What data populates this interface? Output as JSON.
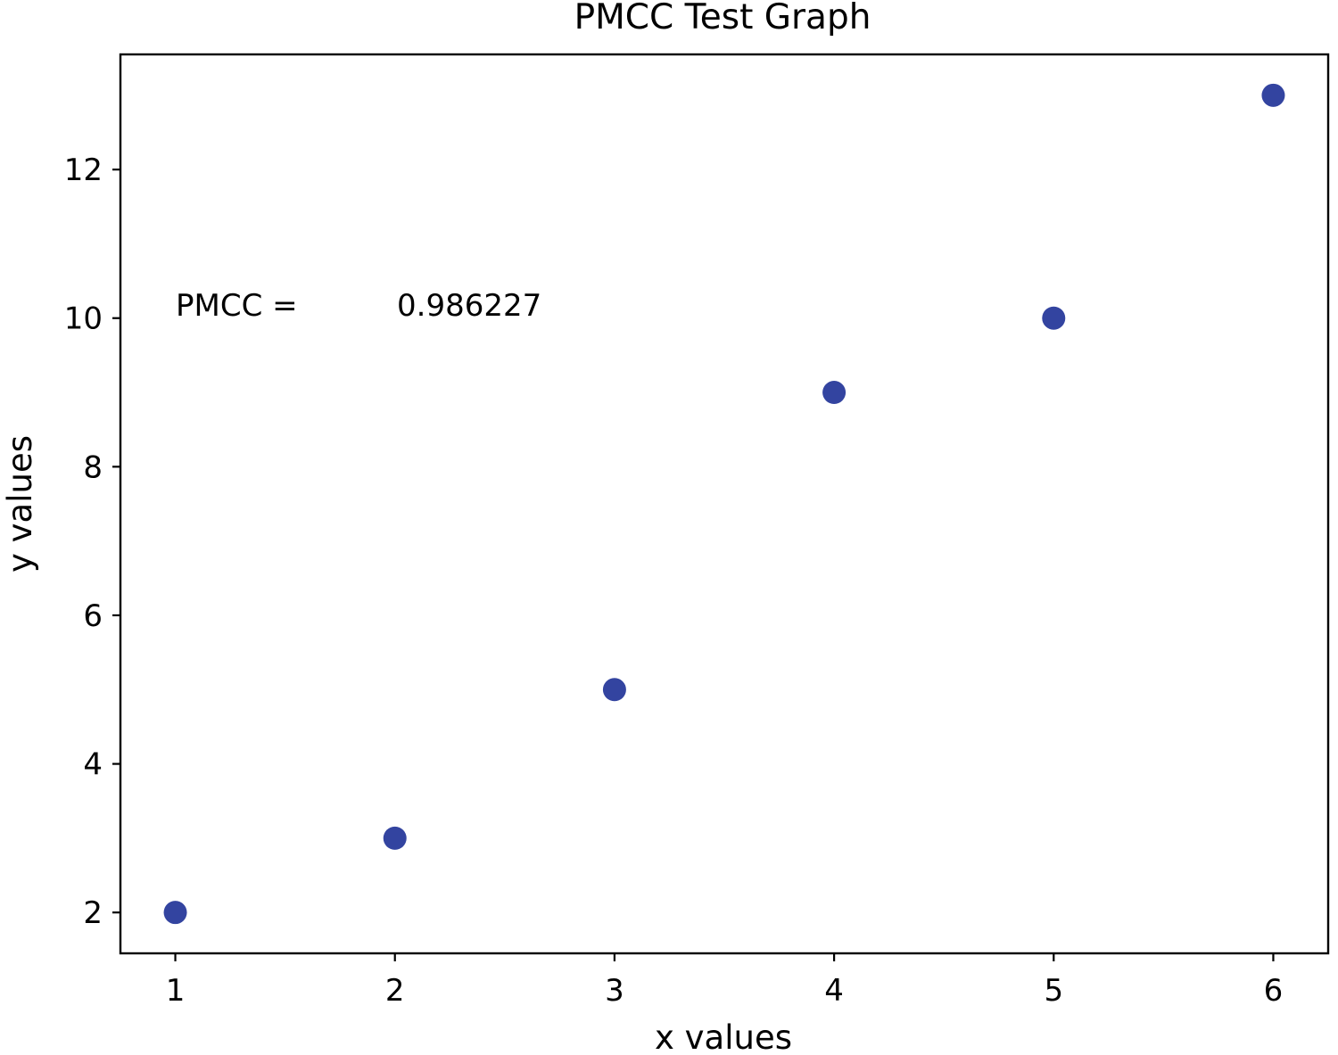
{
  "chart_data": {
    "type": "scatter",
    "title": "PMCC Test Graph",
    "xlabel": "x values",
    "ylabel": "y values",
    "x": [
      1,
      2,
      3,
      4,
      5,
      6
    ],
    "y": [
      2,
      3,
      5,
      9,
      10,
      13
    ],
    "xlim": [
      0.75,
      6.25
    ],
    "ylim": [
      1.45,
      13.55
    ],
    "xticks": [
      1,
      2,
      3,
      4,
      5,
      6
    ],
    "yticks": [
      2,
      4,
      6,
      8,
      10,
      12
    ],
    "marker_color": "#3344a0",
    "grid": false,
    "annotations": [
      {
        "label": "PMCC =",
        "value": "0.986227",
        "x": 1,
        "y": 10
      }
    ]
  }
}
